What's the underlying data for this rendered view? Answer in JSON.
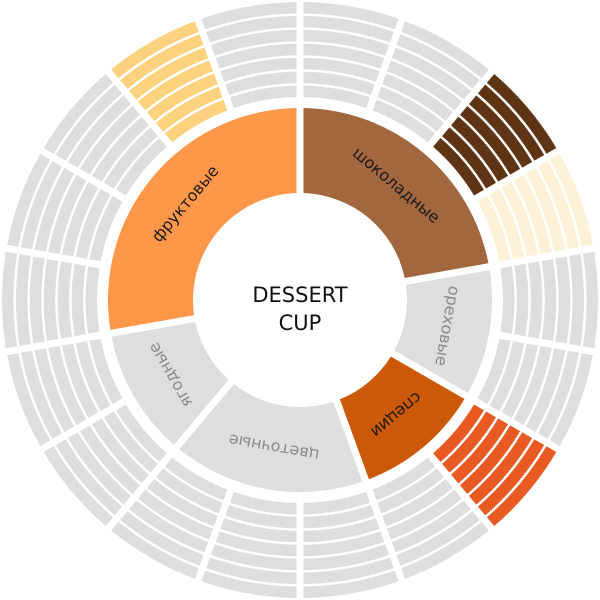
{
  "title_lines": [
    "DESSERT",
    "CUP"
  ],
  "colors": {
    "neutral": "#dedede",
    "neutral_text": "#8a8a8a",
    "dark_text": "#1a1a1a"
  },
  "categories": [
    {
      "label": "шоколадные",
      "color": "#a3673f",
      "active": true,
      "children": [
        "#dedede",
        "#dedede",
        "#5e3414",
        "#fdf1d8"
      ]
    },
    {
      "label": "ореховые",
      "color": "#dedede",
      "active": false,
      "children": [
        "#dedede",
        "#dedede"
      ]
    },
    {
      "label": "специи",
      "color": "#cc5908",
      "active": true,
      "children": [
        "#e85a22",
        "#dedede"
      ]
    },
    {
      "label": "цветочные",
      "color": "#dedede",
      "active": false,
      "children": [
        "#dedede",
        "#dedede",
        "#dedede"
      ]
    },
    {
      "label": "ягодные",
      "color": "#dedede",
      "active": false,
      "children": [
        "#dedede",
        "#dedede"
      ]
    },
    {
      "label": "фруктовые",
      "color": "#ff974a",
      "active": true,
      "children": [
        "#dedede",
        "#dedede",
        "#dedede",
        "#fdd27e",
        "#dedede"
      ]
    }
  ],
  "bands_per_segment": 7
}
